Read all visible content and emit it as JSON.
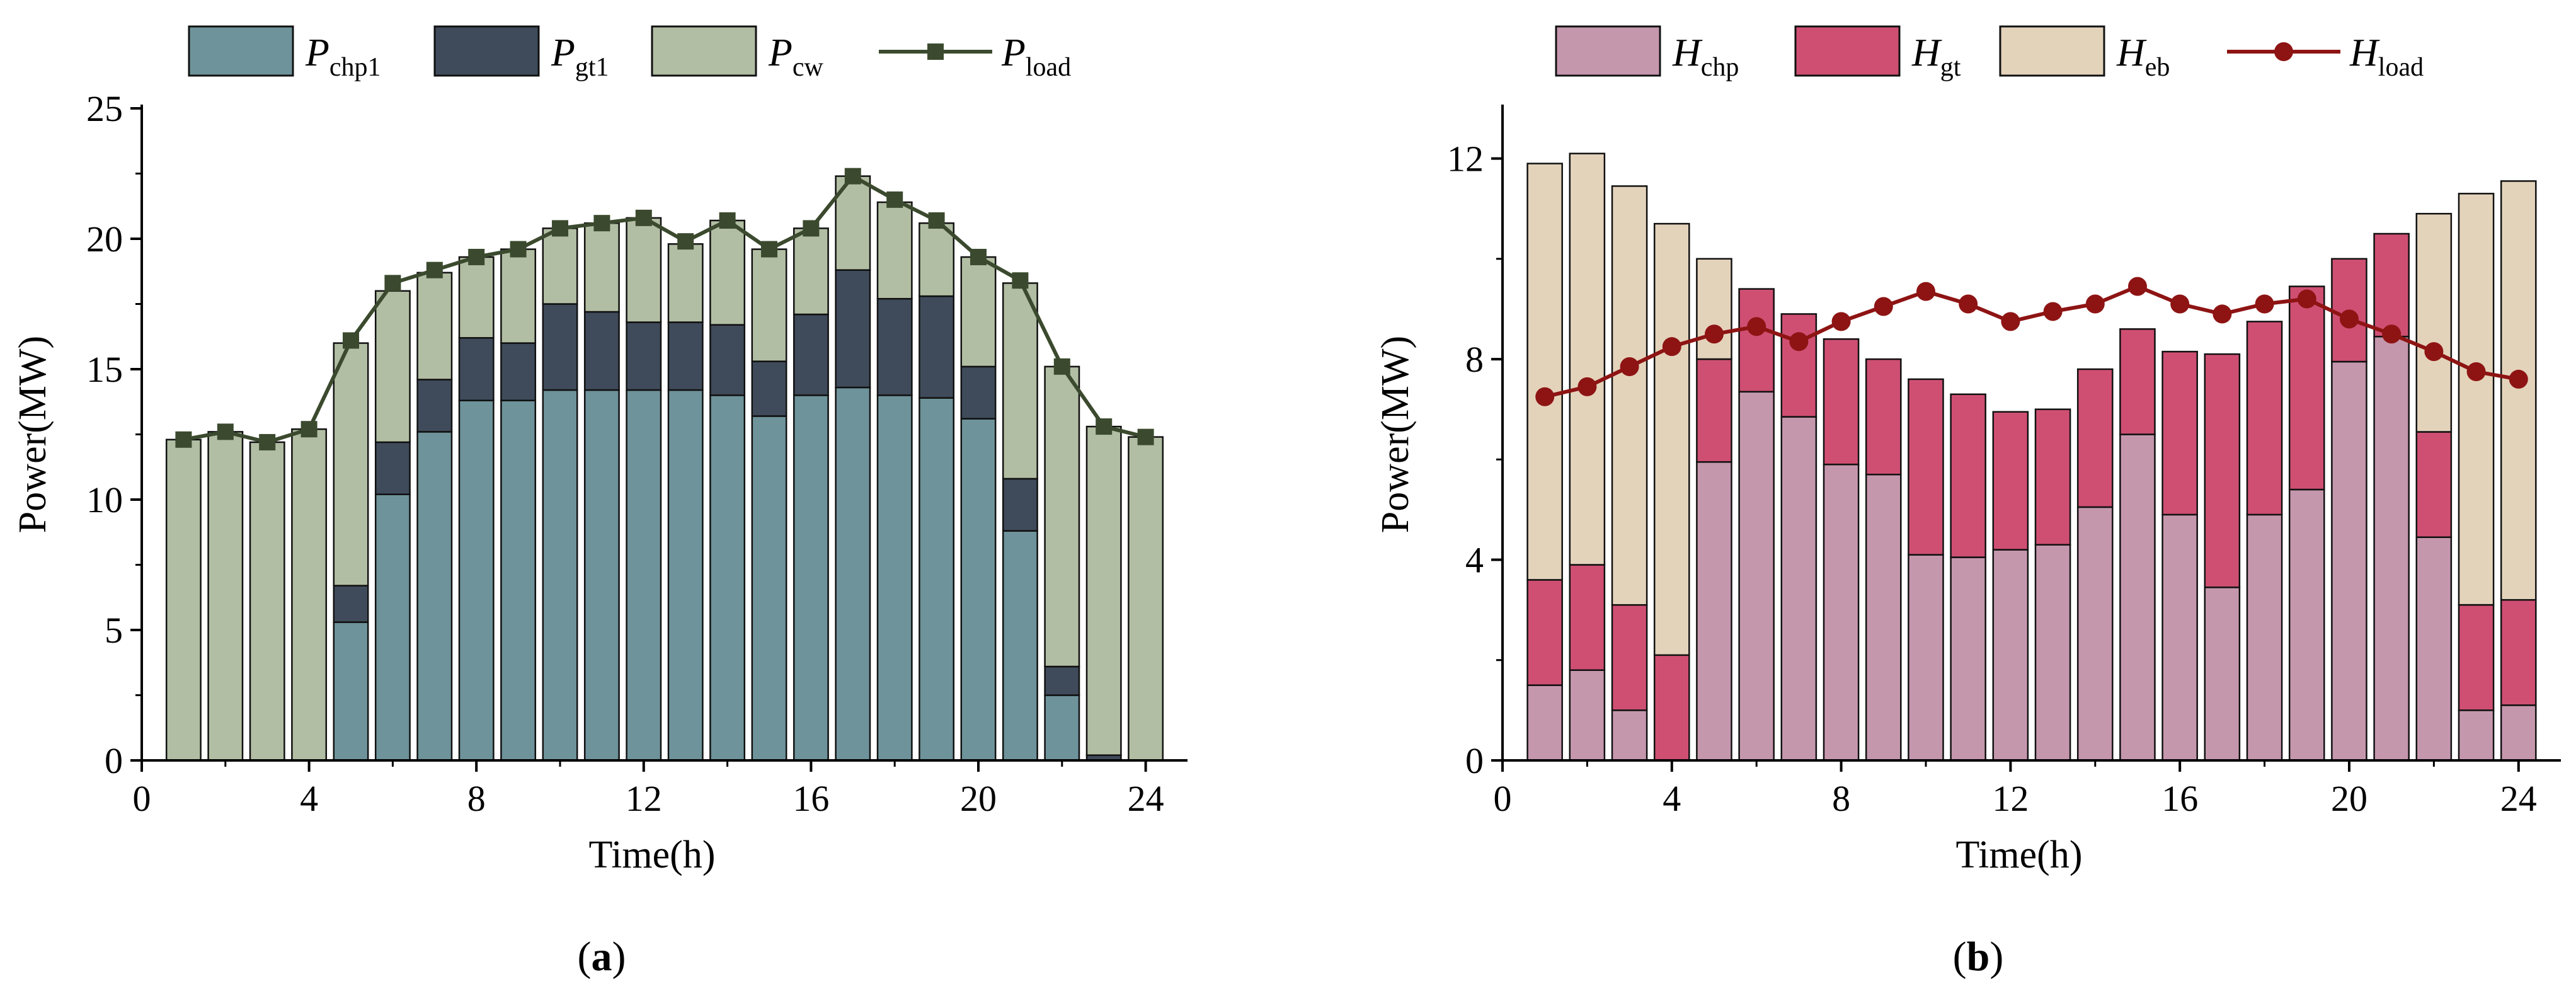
{
  "colors": {
    "chp1": "#6e939a",
    "gt1": "#3f4b5a",
    "cw": "#b2bea3",
    "pload": "#3b4a2e",
    "hchp": "#c597ad",
    "hgt": "#cf4f73",
    "heb": "#e4d3bb",
    "hload": "#8e1414"
  },
  "chart_data": [
    {
      "panel": "(a)",
      "panel_letter": "a",
      "type": "bar",
      "stacked": true,
      "xlabel": "Time(h)",
      "ylabel": "Power(MW)",
      "xlim": [
        0,
        25
      ],
      "ylim": [
        0,
        25
      ],
      "xticks": [
        0,
        4,
        8,
        12,
        16,
        20,
        24
      ],
      "yticks": [
        0,
        5,
        10,
        15,
        20,
        25
      ],
      "legend": [
        {
          "key": "chp1",
          "sym": "P",
          "sub": "chp1",
          "kind": "bar"
        },
        {
          "key": "gt1",
          "sym": "P",
          "sub": "gt1",
          "kind": "bar"
        },
        {
          "key": "cw",
          "sym": "P",
          "sub": "cw",
          "kind": "bar"
        },
        {
          "key": "pload",
          "sym": "P",
          "sub": "load",
          "kind": "line-square"
        }
      ],
      "x": [
        1,
        2,
        3,
        4,
        5,
        6,
        7,
        8,
        9,
        10,
        11,
        12,
        13,
        14,
        15,
        16,
        17,
        18,
        19,
        20,
        21,
        22,
        23,
        24
      ],
      "series": [
        {
          "key": "chp1",
          "name": "P_chp1",
          "values": [
            0,
            0,
            0,
            0,
            5.3,
            10.2,
            12.6,
            13.8,
            13.8,
            14.2,
            14.2,
            14.2,
            14.2,
            14.0,
            13.2,
            14.0,
            14.3,
            14.0,
            13.9,
            13.1,
            8.8,
            2.5,
            0,
            0
          ]
        },
        {
          "key": "gt1",
          "name": "P_gt1",
          "values": [
            0,
            0,
            0,
            0,
            1.4,
            2.0,
            2.0,
            2.4,
            2.2,
            3.3,
            3.0,
            2.6,
            2.6,
            2.7,
            2.1,
            3.1,
            4.5,
            3.7,
            3.9,
            2.0,
            2.0,
            1.1,
            0.2,
            0
          ]
        },
        {
          "key": "cw",
          "name": "P_cw",
          "values": [
            12.3,
            12.6,
            12.2,
            12.7,
            9.3,
            5.8,
            4.1,
            3.1,
            3.6,
            2.9,
            3.4,
            4.0,
            3.0,
            4.0,
            4.3,
            3.3,
            3.6,
            3.7,
            2.8,
            4.2,
            7.5,
            11.5,
            12.6,
            12.4
          ]
        }
      ],
      "line": {
        "key": "pload",
        "name": "P_load",
        "values": [
          12.3,
          12.6,
          12.2,
          12.7,
          16.1,
          18.3,
          18.8,
          19.3,
          19.6,
          20.4,
          20.6,
          20.8,
          19.9,
          20.7,
          19.6,
          20.4,
          22.4,
          21.5,
          20.7,
          19.3,
          18.4,
          15.1,
          12.8,
          12.4
        ]
      }
    },
    {
      "panel": "(b)",
      "panel_letter": "b",
      "type": "bar",
      "stacked": true,
      "xlabel": "Time(h)",
      "ylabel": "Power(MW)",
      "xlim": [
        0,
        25
      ],
      "ylim": [
        0,
        13
      ],
      "xticks": [
        0,
        4,
        8,
        12,
        16,
        20,
        24
      ],
      "yticks": [
        0,
        4,
        8,
        12
      ],
      "legend": [
        {
          "key": "hchp",
          "sym": "H",
          "sub": "chp",
          "kind": "bar"
        },
        {
          "key": "hgt",
          "sym": "H",
          "sub": "gt",
          "kind": "bar"
        },
        {
          "key": "heb",
          "sym": "H",
          "sub": "eb",
          "kind": "bar"
        },
        {
          "key": "hload",
          "sym": "H",
          "sub": "load",
          "kind": "line-circle"
        }
      ],
      "x": [
        1,
        2,
        3,
        4,
        5,
        6,
        7,
        8,
        9,
        10,
        11,
        12,
        13,
        14,
        15,
        16,
        17,
        18,
        19,
        20,
        21,
        22,
        23,
        24
      ],
      "series": [
        {
          "key": "hchp",
          "name": "H_chp",
          "values": [
            1.5,
            1.8,
            1.0,
            0,
            5.95,
            7.35,
            6.85,
            5.9,
            5.7,
            4.1,
            4.05,
            4.2,
            4.3,
            5.05,
            6.5,
            4.9,
            3.45,
            4.9,
            5.4,
            7.95,
            8.45,
            4.45,
            1.0,
            1.1
          ]
        },
        {
          "key": "hgt",
          "name": "H_gt",
          "values": [
            2.1,
            2.1,
            2.1,
            2.1,
            2.05,
            2.05,
            2.05,
            2.5,
            2.3,
            3.5,
            3.25,
            2.75,
            2.7,
            2.75,
            2.1,
            3.25,
            4.65,
            3.85,
            4.05,
            2.05,
            2.05,
            2.1,
            2.1,
            2.1
          ]
        },
        {
          "key": "heb",
          "name": "H_eb",
          "values": [
            8.3,
            8.2,
            8.35,
            8.6,
            2.0,
            0,
            0,
            0,
            0,
            0,
            0,
            0,
            0,
            0,
            0,
            0,
            0,
            0,
            0,
            0,
            0,
            4.35,
            8.2,
            8.35
          ]
        }
      ],
      "line": {
        "key": "hload",
        "name": "H_load",
        "values": [
          7.25,
          7.45,
          7.85,
          8.25,
          8.5,
          8.65,
          8.35,
          8.75,
          9.05,
          9.35,
          9.1,
          8.75,
          8.95,
          9.1,
          9.45,
          9.1,
          8.9,
          9.1,
          9.2,
          8.8,
          8.5,
          8.15,
          7.75,
          7.6
        ]
      }
    }
  ]
}
